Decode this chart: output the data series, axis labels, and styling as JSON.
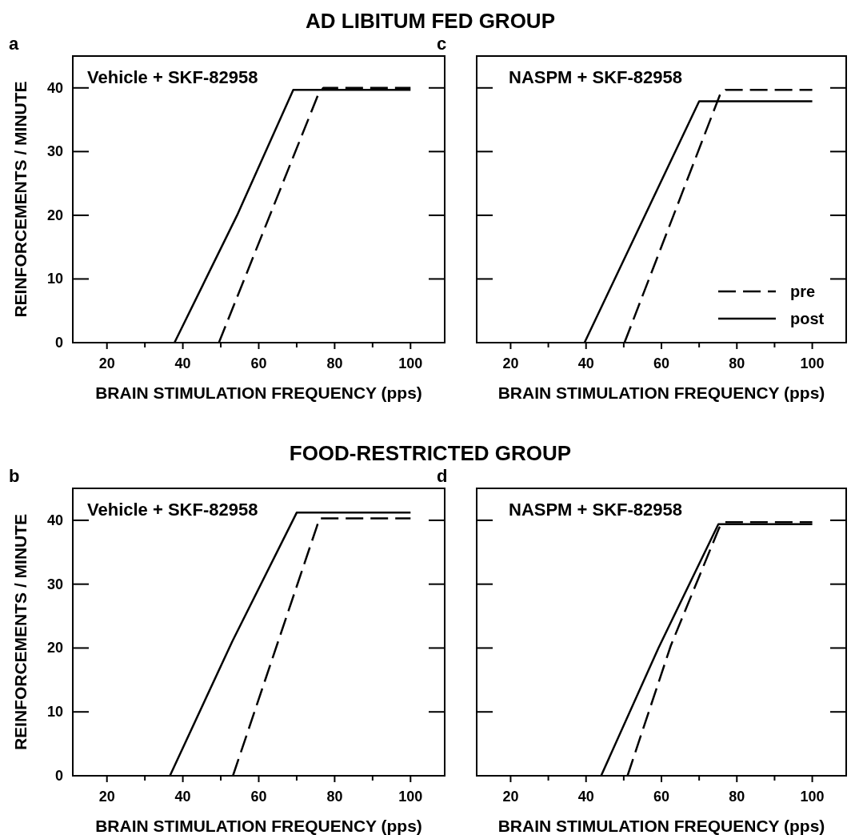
{
  "chart_data": [
    {
      "type": "line",
      "title": "AD LIBITUM FED GROUP",
      "xlabel": "BRAIN STIMULATION FREQUENCY (pps)",
      "ylabel": "REINFORCEMENTS / MINUTE",
      "annotations": [
        "a",
        "Vehicle + SKF-82958"
      ],
      "xlim": [
        11,
        109
      ],
      "ylim": [
        0,
        45
      ],
      "xticks": [
        20,
        {
          "value": 30,
          "label": null
        },
        40,
        {
          "value": 50,
          "label": null
        },
        60,
        {
          "value": 70,
          "label": null
        },
        80,
        {
          "value": 90,
          "label": null
        },
        100
      ],
      "yticks": [
        0,
        10,
        20,
        30,
        40
      ],
      "grid": false,
      "legend": false,
      "series": [
        {
          "color": "#000000",
          "line_style": "dashed",
          "x": [
            49.5,
            75.7,
            77,
            100
          ],
          "values": [
            0,
            39,
            40,
            40
          ]
        },
        {
          "color": "#000000",
          "line_style": "solid",
          "x": [
            37.8,
            54.3,
            69.1,
            100
          ],
          "values": [
            0,
            20,
            39.7,
            39.7
          ]
        }
      ]
    },
    {
      "type": "line",
      "xlabel": "BRAIN STIMULATION FREQUENCY (pps)",
      "annotations": [
        "c",
        "NASPM + SKF-82958"
      ],
      "xlim": [
        11,
        109
      ],
      "ylim": [
        0,
        45
      ],
      "xticks": [
        20,
        {
          "value": 30,
          "label": null
        },
        40,
        {
          "value": 50,
          "label": null
        },
        60,
        {
          "value": 70,
          "label": null
        },
        80,
        {
          "value": 90,
          "label": null
        },
        100
      ],
      "yticks": [
        0,
        10,
        20,
        30,
        40
      ],
      "tick_labels": "x",
      "grid": false,
      "legend": "bottom right",
      "series": [
        {
          "name": "pre",
          "color": "#000000",
          "line_style": "dashed",
          "x": [
            50.2,
            75.7,
            77,
            100
          ],
          "values": [
            0,
            39.2,
            39.7,
            39.7
          ]
        },
        {
          "name": "post",
          "color": "#000000",
          "line_style": "solid",
          "x": [
            39.6,
            70,
            100
          ],
          "values": [
            0,
            37.9,
            37.9
          ]
        }
      ]
    },
    {
      "type": "line",
      "title": "FOOD-RESTRICTED GROUP",
      "xlabel": "BRAIN STIMULATION FREQUENCY (pps)",
      "ylabel": "REINFORCEMENTS / MINUTE",
      "annotations": [
        "b",
        "Vehicle + SKF-82958"
      ],
      "xlim": [
        11,
        109
      ],
      "ylim": [
        0,
        45
      ],
      "xticks": [
        20,
        {
          "value": 30,
          "label": null
        },
        40,
        {
          "value": 50,
          "label": null
        },
        60,
        {
          "value": 70,
          "label": null
        },
        80,
        {
          "value": 90,
          "label": null
        },
        100
      ],
      "yticks": [
        0,
        10,
        20,
        30,
        40
      ],
      "grid": false,
      "legend": false,
      "series": [
        {
          "color": "#000000",
          "line_style": "dashed",
          "x": [
            53.2,
            75.3,
            76,
            100
          ],
          "values": [
            0,
            39,
            40.3,
            40.3
          ]
        },
        {
          "color": "#000000",
          "line_style": "solid",
          "x": [
            36.6,
            53,
            70,
            100
          ],
          "values": [
            0,
            21,
            41.2,
            41.2
          ]
        }
      ]
    },
    {
      "type": "line",
      "xlabel": "BRAIN STIMULATION FREQUENCY (pps)",
      "annotations": [
        "d",
        "NASPM + SKF-82958"
      ],
      "xlim": [
        11,
        109
      ],
      "ylim": [
        0,
        45
      ],
      "xticks": [
        20,
        {
          "value": 30,
          "label": null
        },
        40,
        {
          "value": 50,
          "label": null
        },
        60,
        {
          "value": 70,
          "label": null
        },
        80,
        {
          "value": 90,
          "label": null
        },
        100
      ],
      "yticks": [
        0,
        10,
        20,
        30,
        40
      ],
      "tick_labels": "x",
      "grid": false,
      "legend": false,
      "series": [
        {
          "color": "#000000",
          "line_style": "dashed",
          "x": [
            51,
            62.5,
            75.3,
            76.8,
            100
          ],
          "values": [
            0,
            20.4,
            38.8,
            39.7,
            39.7
          ]
        },
        {
          "color": "#000000",
          "line_style": "solid",
          "x": [
            44,
            59.2,
            75.1,
            100
          ],
          "values": [
            0,
            20,
            39.4,
            39.4
          ]
        }
      ]
    }
  ]
}
